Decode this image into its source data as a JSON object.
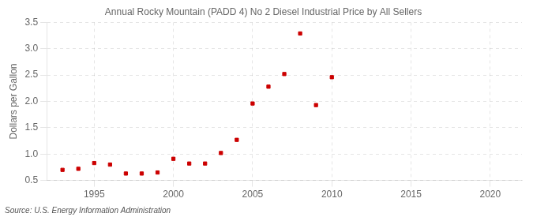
{
  "chart_data": {
    "type": "scatter",
    "title": "Annual Rocky Mountain (PADD 4) No 2 Diesel Industrial Price by All Sellers",
    "ylabel": "Dollars per Gallon",
    "annotations": [
      "Source: U.S. Energy Information Administration"
    ],
    "x": [
      1993,
      1994,
      1995,
      1996,
      1997,
      1998,
      1999,
      2000,
      2001,
      2002,
      2003,
      2004,
      2005,
      2006,
      2007,
      2008,
      2009,
      2010
    ],
    "values": [
      0.7,
      0.72,
      0.83,
      0.8,
      0.63,
      0.63,
      0.65,
      0.91,
      0.82,
      0.82,
      1.02,
      1.27,
      1.96,
      2.28,
      2.52,
      3.29,
      1.93,
      2.46
    ],
    "color": "#cc0000",
    "marker": "square",
    "xlim": [
      1992,
      2022
    ],
    "xticks": [
      1995,
      2000,
      2005,
      2010,
      2015,
      2020
    ],
    "ylim": [
      0.5,
      3.5
    ],
    "yticks": [
      0.5,
      {
        "value": 1.0,
        "label": "1.0"
      },
      1.5,
      {
        "value": 2.0,
        "label": "2.0"
      },
      2.5,
      {
        "value": 3.0,
        "label": "3.0"
      },
      3.5
    ],
    "grid": true
  }
}
